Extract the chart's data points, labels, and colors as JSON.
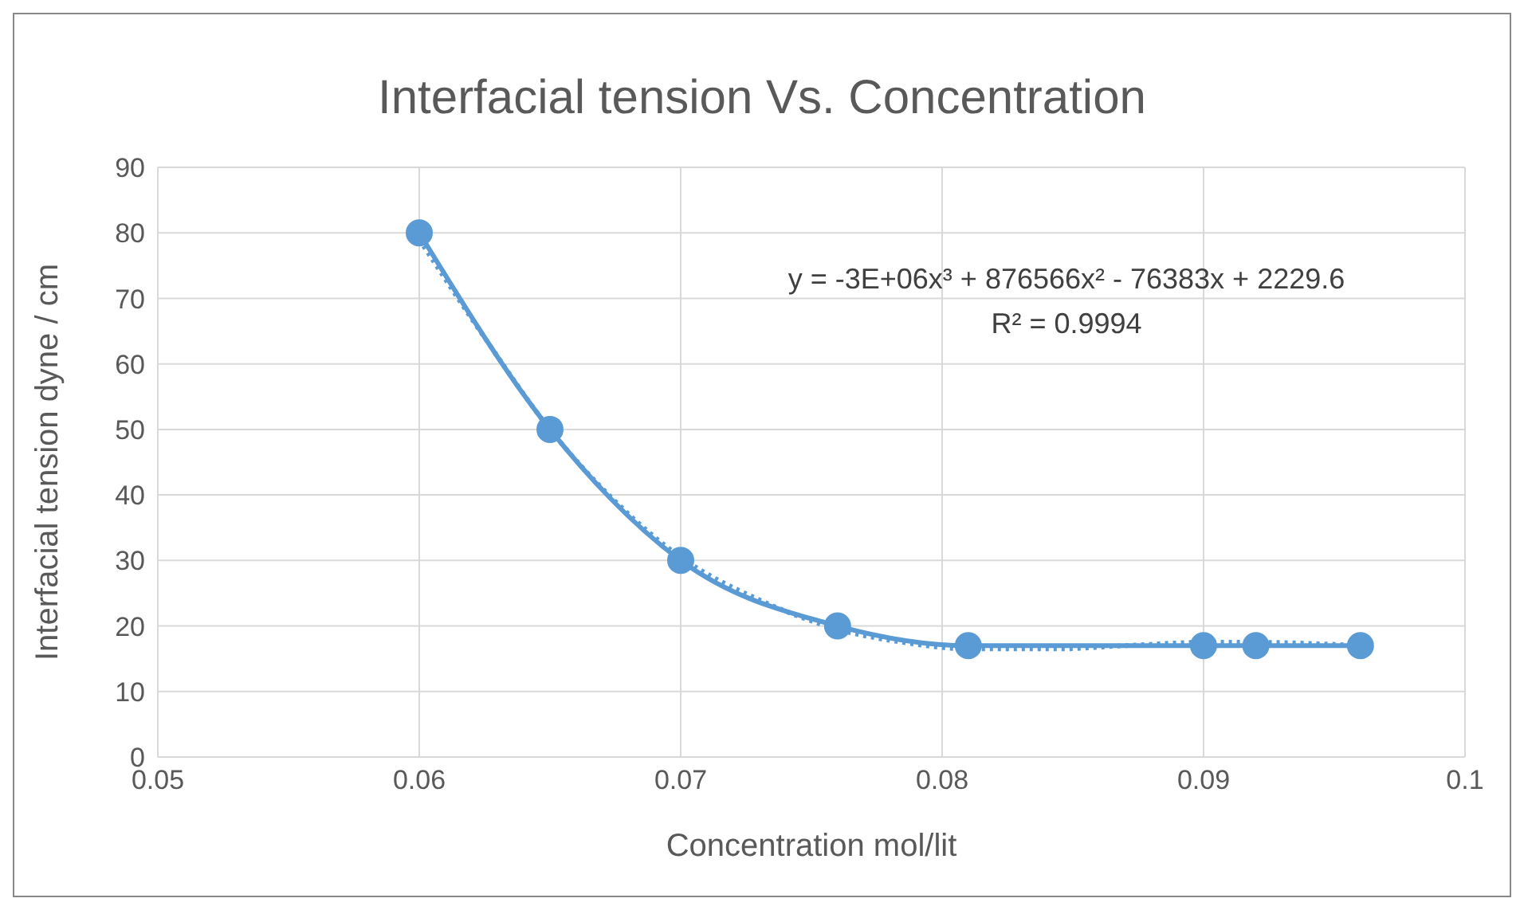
{
  "chart_data": {
    "type": "line",
    "title": "Interfacial tension Vs. Concentration",
    "xlabel": "Concentration mol/lit",
    "ylabel": "Interfacial tension dyne / cm",
    "x": [
      0.06,
      0.065,
      0.07,
      0.076,
      0.081,
      0.09,
      0.092,
      0.096
    ],
    "series": [
      {
        "color": "#5b9bd5",
        "values": [
          80,
          50,
          30,
          20,
          17,
          17,
          17,
          17
        ],
        "marker": "circle",
        "line_style": "solid"
      },
      {
        "type": "line",
        "color": "#5b9bd5",
        "x": [
          0.06,
          0.0625,
          0.065,
          0.0675,
          0.07,
          0.073,
          0.076,
          0.0785,
          0.081,
          0.0845,
          0.087,
          0.09,
          0.092,
          0.096
        ],
        "values": [
          79,
          64,
          50,
          39,
          30.5,
          24,
          19.5,
          17.5,
          16.5,
          16.5,
          17,
          17.5,
          17.5,
          17
        ],
        "marker": "none",
        "line_style": "dotted"
      }
    ],
    "xlim": [
      0.05,
      0.1
    ],
    "xticks": [
      0.05,
      0.06,
      0.07,
      0.08,
      0.09,
      0.1
    ],
    "ylim": [
      0,
      90
    ],
    "yticks": [
      0,
      10,
      20,
      30,
      40,
      50,
      60,
      70,
      80,
      90
    ],
    "grid": true,
    "annotations": [
      "y = -3E+06x³ + 876566x² - 76383x + 2229.6",
      "R² = 0.9994"
    ]
  }
}
